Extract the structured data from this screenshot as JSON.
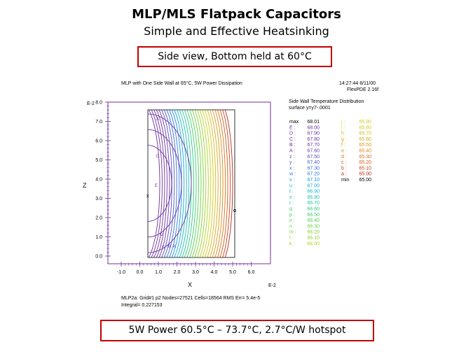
{
  "slide": {
    "title": "MLP/MLS Flatpack Capacitors",
    "subtitle": "Simple and Effective Heatsinking",
    "callout_top": "Side view, Bottom held at 60°C",
    "callout_bottom": "5W Power 60.5°C – 73.7°C, 2.7°C/W hotspot"
  },
  "plot": {
    "header_left": "MLP with One Side Wall at 65°C, 5W Power Dissipation",
    "header_right_1": "14:27:44 8/11/00",
    "header_right_2": "FlexPDE 2.16f",
    "legend_title_1": "Side Wall Temperature Distribution",
    "legend_title_2": "surface y=y7-.0001",
    "y_axis_label": "Z",
    "y_exp": "E-2",
    "x_axis_label": "X",
    "x_exp": "E-2",
    "y_ticks": [
      "8.0",
      "7.0",
      "6.0",
      "5.0",
      "4.0",
      "3.0",
      "2.0",
      "1.0",
      "0.0"
    ],
    "x_ticks": [
      "-1.0",
      "0.0",
      "1.0",
      "2.0",
      "3.0",
      "4.0",
      "5.0",
      "6.0"
    ],
    "footer_1": "MLP2a: Grid#1 p2 Nodes=27521 Cells=18564 RMS Err= 5.4e-5",
    "footer_2": "Integral= 0.227153",
    "contour_letters": [
      "A",
      "D",
      "E",
      "D",
      "C",
      "B",
      "A"
    ],
    "legend_left": [
      {
        "k": "max",
        "v": "68.01",
        "c": "#000000"
      },
      {
        "k": "E :",
        "v": "68.00",
        "c": "#7030a0"
      },
      {
        "k": "D :",
        "v": "67.90",
        "c": "#7030a0"
      },
      {
        "k": "C :",
        "v": "67.80",
        "c": "#7030a0"
      },
      {
        "k": "B :",
        "v": "67.70",
        "c": "#7030a0"
      },
      {
        "k": "A :",
        "v": "67.60",
        "c": "#6a3aa8"
      },
      {
        "k": "z :",
        "v": "67.50",
        "c": "#5a4ab8"
      },
      {
        "k": "y :",
        "v": "67.40",
        "c": "#4a5ac8"
      },
      {
        "k": "x :",
        "v": "67.30",
        "c": "#3a6ad8"
      },
      {
        "k": "w :",
        "v": "67.20",
        "c": "#2a7ae0"
      },
      {
        "k": "v :",
        "v": "67.10",
        "c": "#1a90e0"
      },
      {
        "k": "u :",
        "v": "67.00",
        "c": "#10a8d8"
      },
      {
        "k": "t :",
        "v": "66.90",
        "c": "#10b8c8"
      },
      {
        "k": "s :",
        "v": "66.80",
        "c": "#18c0b0"
      },
      {
        "k": "r :",
        "v": "66.70",
        "c": "#20c498"
      },
      {
        "k": "q :",
        "v": "66.60",
        "c": "#28c880"
      },
      {
        "k": "p :",
        "v": "66.50",
        "c": "#38cc68"
      },
      {
        "k": "o :",
        "v": "66.40",
        "c": "#50d050"
      },
      {
        "k": "n :",
        "v": "66.30",
        "c": "#68d040"
      },
      {
        "k": "m :",
        "v": "66.20",
        "c": "#80d030"
      },
      {
        "k": "l :",
        "v": "66.10",
        "c": "#98d028"
      },
      {
        "k": "k :",
        "v": "66.00",
        "c": "#b0d020"
      }
    ],
    "legend_right": [
      {
        "k": "j :",
        "v": "65.90",
        "c": "#c8d018"
      },
      {
        "k": "i :",
        "v": "65.80",
        "c": "#d0c818"
      },
      {
        "k": "h :",
        "v": "65.70",
        "c": "#d8b818"
      },
      {
        "k": "g :",
        "v": "65.60",
        "c": "#d8a818"
      },
      {
        "k": "f :",
        "v": "65.50",
        "c": "#d89818"
      },
      {
        "k": "e :",
        "v": "65.40",
        "c": "#d88818"
      },
      {
        "k": "d :",
        "v": "65.30",
        "c": "#d87018"
      },
      {
        "k": "c :",
        "v": "65.20",
        "c": "#d05818"
      },
      {
        "k": "b :",
        "v": "65.10",
        "c": "#c84018"
      },
      {
        "k": "a :",
        "v": "65.00",
        "c": "#b82818"
      },
      {
        "k": "min",
        "v": "65.00",
        "c": "#000000"
      }
    ]
  }
}
